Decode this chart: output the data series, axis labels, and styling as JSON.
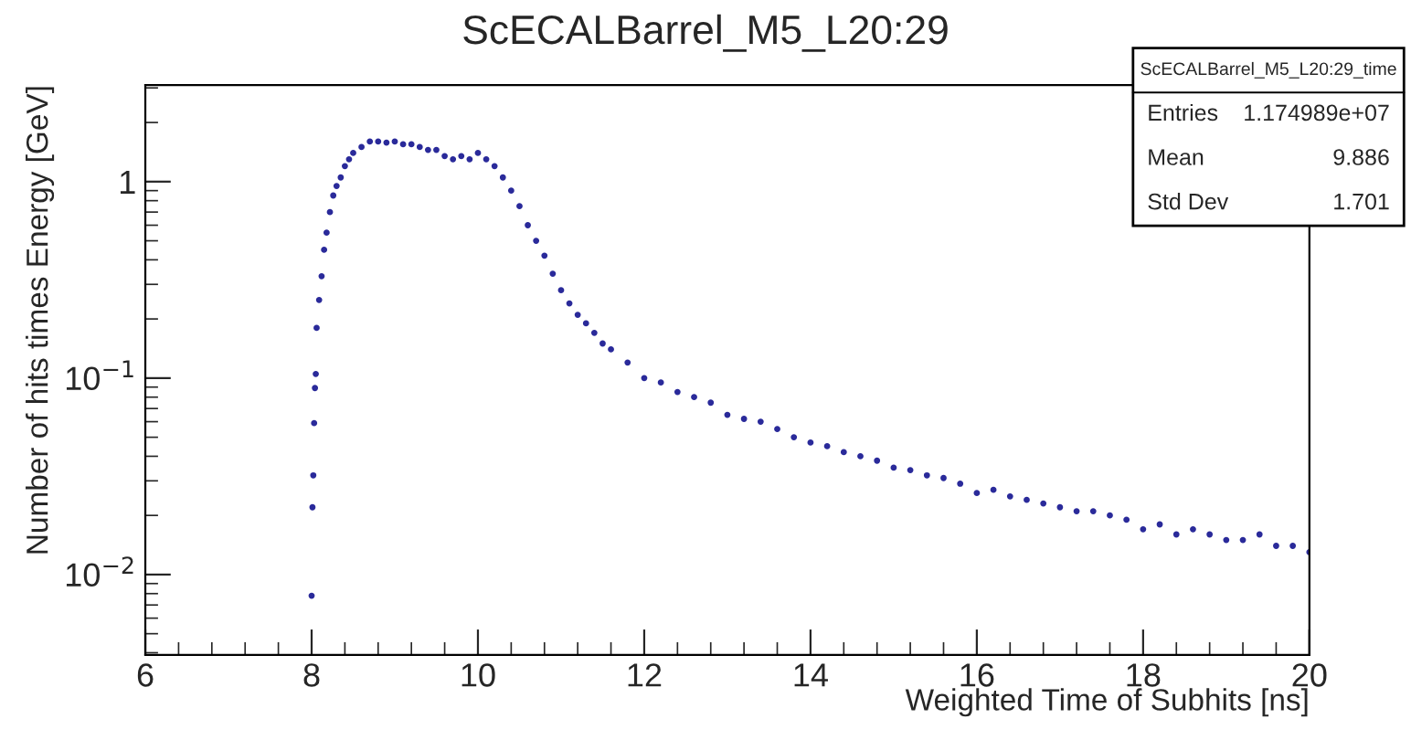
{
  "chart_data": {
    "type": "scatter",
    "title": "ScECALBarrel_M5_L20:29",
    "xlabel": "Weighted Time of Subhits [ns]",
    "ylabel": "Number of hits times Energy [GeV]",
    "annotations": [
      "ScECALBarrel_M5_L20:29_time",
      "Entries",
      "1.174989e+07",
      "Mean",
      "9.886",
      "Std Dev",
      "1.701"
    ],
    "log": "y",
    "grid": false,
    "legend": false,
    "marker": "circle",
    "xlim": [
      6,
      20
    ],
    "xticks": [
      6,
      8,
      10,
      12,
      14,
      16,
      18,
      20
    ],
    "ylim": [
      0.0039,
      3.1
    ],
    "yticks": [
      {
        "value": 0.01,
        "label": "10$^{−2}$"
      },
      {
        "value": 0.1,
        "label": "10$^{−1}$"
      },
      {
        "value": 1,
        "label": "1"
      }
    ],
    "series": [
      {
        "color": "#2a2a9a",
        "x": [
          8.0,
          8.01,
          8.02,
          8.03,
          8.04,
          8.05,
          8.06,
          8.09,
          8.12,
          8.15,
          8.18,
          8.22,
          8.26,
          8.3,
          8.35,
          8.4,
          8.45,
          8.5,
          8.6,
          8.7,
          8.8,
          8.9,
          9.0,
          9.1,
          9.2,
          9.3,
          9.4,
          9.5,
          9.6,
          9.7,
          9.8,
          9.9,
          10.0,
          10.1,
          10.2,
          10.3,
          10.4,
          10.5,
          10.6,
          10.7,
          10.8,
          10.9,
          11.0,
          11.1,
          11.2,
          11.3,
          11.4,
          11.5,
          11.6,
          11.8,
          12.0,
          12.2,
          12.4,
          12.6,
          12.8,
          13.0,
          13.2,
          13.4,
          13.6,
          13.8,
          14.0,
          14.2,
          14.4,
          14.6,
          14.8,
          15.0,
          15.2,
          15.4,
          15.6,
          15.8,
          16.0,
          16.2,
          16.4,
          16.6,
          16.8,
          17.0,
          17.2,
          17.4,
          17.6,
          17.8,
          18.0,
          18.2,
          18.4,
          18.6,
          18.8,
          19.0,
          19.2,
          19.4,
          19.6,
          19.8,
          20.0
        ],
        "values": [
          0.0078,
          0.022,
          0.032,
          0.059,
          0.089,
          0.105,
          0.18,
          0.25,
          0.33,
          0.45,
          0.55,
          0.7,
          0.85,
          0.95,
          1.05,
          1.2,
          1.3,
          1.4,
          1.5,
          1.6,
          1.6,
          1.58,
          1.6,
          1.55,
          1.55,
          1.5,
          1.45,
          1.45,
          1.35,
          1.3,
          1.35,
          1.3,
          1.4,
          1.3,
          1.2,
          1.05,
          0.9,
          0.75,
          0.6,
          0.5,
          0.42,
          0.34,
          0.28,
          0.24,
          0.21,
          0.19,
          0.17,
          0.15,
          0.14,
          0.12,
          0.1,
          0.095,
          0.085,
          0.08,
          0.075,
          0.065,
          0.062,
          0.06,
          0.055,
          0.05,
          0.047,
          0.045,
          0.042,
          0.04,
          0.038,
          0.035,
          0.034,
          0.032,
          0.031,
          0.029,
          0.026,
          0.027,
          0.025,
          0.024,
          0.023,
          0.022,
          0.021,
          0.021,
          0.02,
          0.019,
          0.017,
          0.018,
          0.016,
          0.017,
          0.016,
          0.015,
          0.015,
          0.016,
          0.014,
          0.014,
          0.013
        ]
      }
    ]
  }
}
